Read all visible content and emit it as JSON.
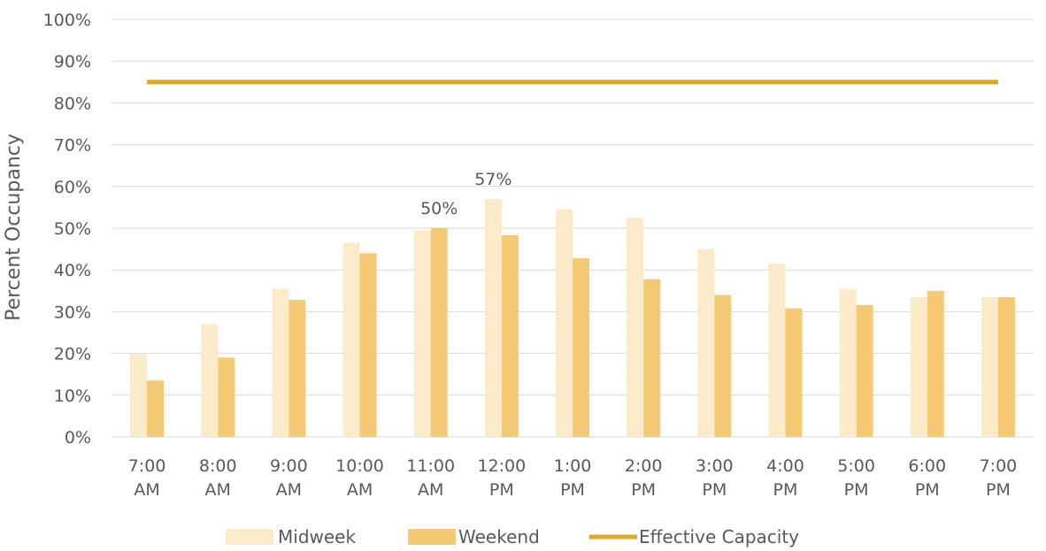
{
  "chart_data": {
    "type": "bar",
    "title": "",
    "xlabel": "",
    "ylabel": "Percent Occupancy",
    "ylim": [
      0,
      100
    ],
    "y_ticks": [
      "0%",
      "10%",
      "20%",
      "30%",
      "40%",
      "50%",
      "60%",
      "70%",
      "80%",
      "90%",
      "100%"
    ],
    "categories": [
      [
        "7:00",
        "AM"
      ],
      [
        "8:00",
        "AM"
      ],
      [
        "9:00",
        "AM"
      ],
      [
        "10:00",
        "AM"
      ],
      [
        "11:00",
        "AM"
      ],
      [
        "12:00",
        "PM"
      ],
      [
        "1:00",
        "PM"
      ],
      [
        "2:00",
        "PM"
      ],
      [
        "3:00",
        "PM"
      ],
      [
        "4:00",
        "PM"
      ],
      [
        "5:00",
        "PM"
      ],
      [
        "6:00",
        "PM"
      ],
      [
        "7:00",
        "PM"
      ]
    ],
    "series": [
      {
        "name": "Midweek",
        "color": "#fcebc9",
        "values": [
          19.8,
          27.0,
          35.5,
          46.5,
          49.5,
          57.0,
          54.5,
          52.5,
          45.0,
          41.5,
          35.5,
          33.5,
          33.5
        ]
      },
      {
        "name": "Weekend",
        "color": "#f5ca74",
        "values": [
          13.5,
          19.0,
          32.8,
          44.0,
          50.0,
          48.3,
          42.8,
          37.8,
          34.0,
          30.8,
          31.6,
          35.0,
          33.5
        ]
      }
    ],
    "reference_line": {
      "name": "Effective Capacity",
      "value": 85,
      "color": "#dfa82a"
    },
    "data_labels": [
      {
        "series": 1,
        "index": 4,
        "text": "50%"
      },
      {
        "series": 0,
        "index": 5,
        "text": "57%"
      }
    ],
    "legend": {
      "position": "bottom",
      "items": [
        "Midweek",
        "Weekend",
        "Effective Capacity"
      ]
    },
    "grid": true
  }
}
